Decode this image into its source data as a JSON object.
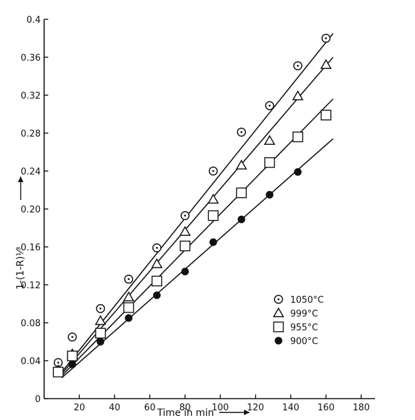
{
  "chart_data": {
    "type": "scatter",
    "title": "",
    "xlabel": "Time in min",
    "ylabel": "1-(1-R)¹⁄³",
    "xlim": [
      0,
      180
    ],
    "ylim": [
      0,
      0.4
    ],
    "x_ticks": [
      20,
      40,
      60,
      80,
      100,
      120,
      140,
      160,
      180
    ],
    "y_ticks": [
      0,
      0.04,
      0.08,
      0.12,
      0.16,
      0.2,
      0.24,
      0.28,
      0.32,
      0.36,
      0.4
    ],
    "x_tick_labels": [
      "20",
      "40",
      "60",
      "80",
      "100",
      "120",
      "140",
      "160",
      "180"
    ],
    "y_tick_labels": [
      "0",
      "0.04",
      "0.08",
      "0.12",
      "0.16",
      "0.20",
      "0.24",
      "0.28",
      "0.32",
      "0.36",
      "0.4"
    ],
    "grid": false,
    "legend_position": "right-middle",
    "series": [
      {
        "name": "1050°C",
        "marker": "circle-dot",
        "x": [
          8,
          16,
          32,
          48,
          64,
          80,
          96,
          112,
          128,
          144,
          160
        ],
        "y": [
          0.038,
          0.065,
          0.095,
          0.126,
          0.159,
          0.193,
          0.24,
          0.281,
          0.309,
          0.351,
          0.38
        ],
        "fit": [
          [
            10,
            0.028
          ],
          [
            164,
            0.385
          ]
        ]
      },
      {
        "name": "999°C",
        "marker": "triangle",
        "x": [
          8,
          16,
          32,
          48,
          64,
          80,
          96,
          112,
          128,
          144,
          160
        ],
        "y": [
          0.03,
          0.047,
          0.082,
          0.107,
          0.142,
          0.176,
          0.21,
          0.246,
          0.272,
          0.319,
          0.352
        ],
        "fit": [
          [
            10,
            0.026
          ],
          [
            164,
            0.36
          ]
        ]
      },
      {
        "name": "955°C",
        "marker": "square",
        "x": [
          8,
          16,
          32,
          48,
          64,
          80,
          96,
          112,
          128,
          144,
          160
        ],
        "y": [
          0.028,
          0.045,
          0.069,
          0.096,
          0.124,
          0.161,
          0.193,
          0.217,
          0.249,
          0.276,
          0.299
        ],
        "fit": [
          [
            10,
            0.024
          ],
          [
            164,
            0.316
          ]
        ]
      },
      {
        "name": "900°C",
        "marker": "filled-circle",
        "x": [
          16,
          32,
          48,
          64,
          80,
          96,
          112,
          128,
          144
        ],
        "y": [
          0.036,
          0.06,
          0.085,
          0.109,
          0.134,
          0.165,
          0.189,
          0.215,
          0.239
        ],
        "fit": [
          [
            10,
            0.022
          ],
          [
            164,
            0.274
          ]
        ]
      }
    ]
  }
}
